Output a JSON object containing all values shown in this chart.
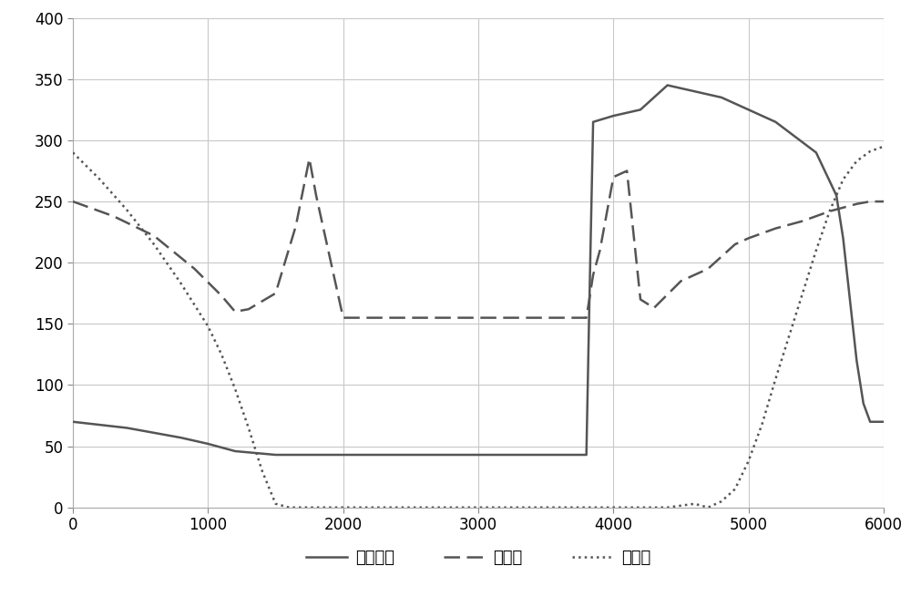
{
  "title": "",
  "xlabel": "",
  "ylabel": "",
  "xlim": [
    0,
    6000
  ],
  "ylim": [
    0,
    400
  ],
  "yticks": [
    0,
    50,
    100,
    150,
    200,
    250,
    300,
    350,
    400
  ],
  "xticks": [
    0,
    1000,
    2000,
    3000,
    4000,
    5000,
    6000
  ],
  "background_color": "#ffffff",
  "grid_color": "#c8c8c8",
  "line1_label": "飞行方向",
  "line2_label": "对地面",
  "line3_label": "朝天面",
  "line_color": "#555555",
  "line1_x": [
    0,
    400,
    800,
    1000,
    1100,
    1200,
    1500,
    2000,
    2500,
    3000,
    3500,
    3750,
    3800,
    3820,
    3850,
    4000,
    4200,
    4400,
    4600,
    4800,
    5000,
    5200,
    5500,
    5650,
    5700,
    5750,
    5800,
    5850,
    5900,
    6000
  ],
  "line1_y": [
    70,
    65,
    57,
    52,
    49,
    46,
    43,
    43,
    43,
    43,
    43,
    43,
    43,
    155,
    315,
    320,
    325,
    345,
    340,
    335,
    325,
    315,
    290,
    255,
    220,
    170,
    120,
    85,
    70,
    70
  ],
  "line2_x": [
    0,
    300,
    600,
    900,
    1100,
    1200,
    1300,
    1500,
    1650,
    1750,
    1800,
    1900,
    2000,
    2500,
    3000,
    3500,
    3700,
    3750,
    3800,
    3850,
    3900,
    4000,
    4100,
    4200,
    4300,
    4500,
    4700,
    4900,
    5000,
    5200,
    5400,
    5600,
    5800,
    5900,
    6000
  ],
  "line2_y": [
    250,
    238,
    222,
    195,
    173,
    160,
    162,
    175,
    230,
    285,
    255,
    205,
    155,
    155,
    155,
    155,
    155,
    155,
    155,
    190,
    210,
    270,
    275,
    170,
    163,
    185,
    195,
    215,
    220,
    228,
    234,
    242,
    248,
    250,
    250
  ],
  "line3_x": [
    0,
    200,
    400,
    600,
    800,
    1000,
    1100,
    1200,
    1300,
    1400,
    1500,
    1600,
    2000,
    2500,
    3000,
    3500,
    3800,
    3900,
    4000,
    4200,
    4400,
    4600,
    4700,
    4800,
    4900,
    5000,
    5100,
    5200,
    5400,
    5500,
    5600,
    5700,
    5800,
    5900,
    6000
  ],
  "line3_y": [
    290,
    268,
    243,
    215,
    183,
    148,
    125,
    97,
    65,
    30,
    3,
    0,
    0,
    0,
    0,
    0,
    0,
    0,
    0,
    0,
    0,
    3,
    0,
    5,
    15,
    38,
    68,
    105,
    175,
    210,
    242,
    268,
    283,
    291,
    295
  ]
}
